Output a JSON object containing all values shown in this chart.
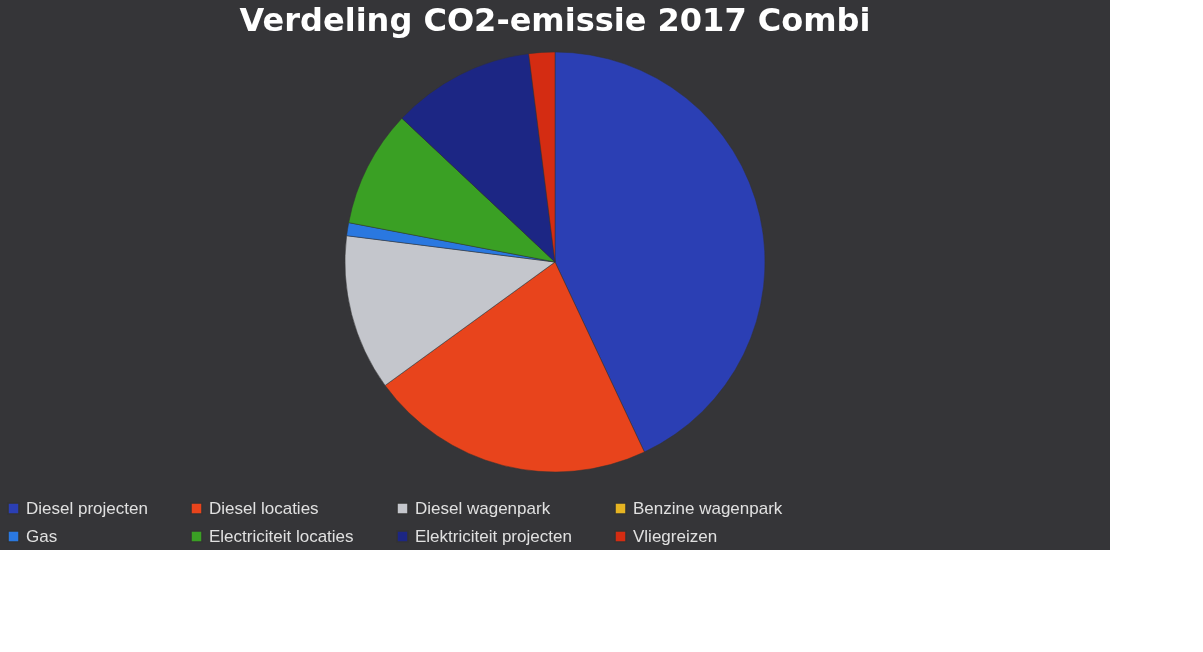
{
  "chart_data": {
    "type": "pie",
    "title": "Verdeling CO2-emissie 2017 Combi",
    "categories": [
      "Diesel projecten",
      "Diesel locaties",
      "Diesel wagenpark",
      "Benzine wagenpark",
      "Gas",
      "Electriciteit locaties",
      "Elektriciteit projecten",
      "Vliegreizen"
    ],
    "values": [
      43,
      22,
      12,
      0,
      1,
      9,
      11,
      2
    ],
    "colors": [
      "#2b3fb4",
      "#e8441c",
      "#c4c6cc",
      "#e6b422",
      "#2a78e0",
      "#3aa024",
      "#1c2684",
      "#d42c12"
    ],
    "legend": "bottom"
  }
}
